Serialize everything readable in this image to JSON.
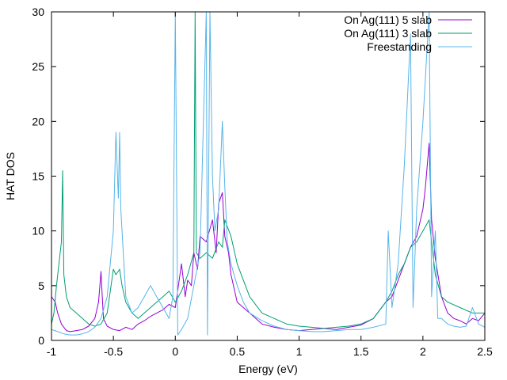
{
  "chart_data": {
    "type": "line",
    "title": "",
    "xlabel": "Energy (eV)",
    "ylabel": "HAT DOS",
    "xlim": [
      -1,
      2.5
    ],
    "ylim": [
      0,
      30
    ],
    "xticks": [
      -1,
      -0.5,
      0,
      0.5,
      1,
      1.5,
      2,
      2.5
    ],
    "xtick_labels": [
      "-1",
      "-0.5",
      "0",
      "0.5",
      "1",
      "1.5",
      "2",
      "2.5"
    ],
    "yticks": [
      0,
      5,
      10,
      15,
      20,
      25,
      30
    ],
    "ytick_labels": [
      "0",
      "5",
      "10",
      "15",
      "20",
      "25",
      "30"
    ],
    "grid": false,
    "legend_position": "top-right",
    "series": [
      {
        "name": "On Ag(111) 5 slab",
        "color": "#9400d3",
        "x": [
          -1.0,
          -0.97,
          -0.95,
          -0.92,
          -0.9,
          -0.88,
          -0.85,
          -0.8,
          -0.75,
          -0.7,
          -0.65,
          -0.62,
          -0.6,
          -0.59,
          -0.58,
          -0.55,
          -0.5,
          -0.45,
          -0.4,
          -0.35,
          -0.3,
          -0.25,
          -0.2,
          -0.15,
          -0.1,
          -0.05,
          0.0,
          0.05,
          0.08,
          0.1,
          0.13,
          0.15,
          0.18,
          0.2,
          0.25,
          0.3,
          0.33,
          0.35,
          0.38,
          0.4,
          0.43,
          0.45,
          0.5,
          0.55,
          0.6,
          0.65,
          0.7,
          0.8,
          0.9,
          1.0,
          1.1,
          1.2,
          1.3,
          1.4,
          1.5,
          1.6,
          1.7,
          1.75,
          1.8,
          1.85,
          1.9,
          1.95,
          2.0,
          2.02,
          2.05,
          2.07,
          2.1,
          2.15,
          2.2,
          2.25,
          2.3,
          2.35,
          2.4,
          2.45,
          2.5
        ],
        "values": [
          4.0,
          3.5,
          2.5,
          1.5,
          1.2,
          0.9,
          0.8,
          0.9,
          1.0,
          1.3,
          2.0,
          3.5,
          6.3,
          4.0,
          2.0,
          1.3,
          1.0,
          0.9,
          1.2,
          1.0,
          1.5,
          1.8,
          2.2,
          2.5,
          2.8,
          3.3,
          3.0,
          7.0,
          4.0,
          5.5,
          5.0,
          8.0,
          6.5,
          9.5,
          9.0,
          11.0,
          8.0,
          12.5,
          13.5,
          9.5,
          8.0,
          6.0,
          3.5,
          3.0,
          2.5,
          2.0,
          1.5,
          1.2,
          1.0,
          0.9,
          1.0,
          1.1,
          1.0,
          1.2,
          1.4,
          2.0,
          3.5,
          4.0,
          5.5,
          7.0,
          8.5,
          9.5,
          12.0,
          14.0,
          18.0,
          11.0,
          7.5,
          4.0,
          2.5,
          2.0,
          1.8,
          1.5,
          2.0,
          1.8,
          2.5
        ]
      },
      {
        "name": "On Ag(111) 3 slab",
        "color": "#009e73",
        "x": [
          -1.0,
          -0.98,
          -0.96,
          -0.94,
          -0.92,
          -0.91,
          -0.9,
          -0.88,
          -0.85,
          -0.8,
          -0.75,
          -0.7,
          -0.65,
          -0.6,
          -0.55,
          -0.5,
          -0.48,
          -0.45,
          -0.43,
          -0.4,
          -0.35,
          -0.3,
          -0.25,
          -0.2,
          -0.15,
          -0.1,
          -0.05,
          0.0,
          0.05,
          0.1,
          0.15,
          0.16,
          0.17,
          0.2,
          0.25,
          0.3,
          0.35,
          0.38,
          0.4,
          0.45,
          0.5,
          0.55,
          0.6,
          0.7,
          0.8,
          0.9,
          1.0,
          1.1,
          1.2,
          1.3,
          1.4,
          1.5,
          1.6,
          1.7,
          1.75,
          1.8,
          1.85,
          1.9,
          1.95,
          2.0,
          2.05,
          2.1,
          2.15,
          2.2,
          2.3,
          2.4,
          2.5
        ],
        "values": [
          1.5,
          2.5,
          5.0,
          7.0,
          9.0,
          15.5,
          6.0,
          4.0,
          3.0,
          2.5,
          2.0,
          1.5,
          1.3,
          1.5,
          2.5,
          6.5,
          6.0,
          6.5,
          5.0,
          3.5,
          2.5,
          2.0,
          2.5,
          3.0,
          3.5,
          4.0,
          4.5,
          3.5,
          4.5,
          6.0,
          8.0,
          30.0,
          8.0,
          7.5,
          8.0,
          7.5,
          9.0,
          8.5,
          11.0,
          9.5,
          7.0,
          5.5,
          4.0,
          2.5,
          2.0,
          1.5,
          1.3,
          1.2,
          1.1,
          1.2,
          1.3,
          1.5,
          2.0,
          3.5,
          4.5,
          6.0,
          7.0,
          8.5,
          9.0,
          10.0,
          11.0,
          6.0,
          4.0,
          3.5,
          3.0,
          2.5,
          2.5
        ]
      },
      {
        "name": "Freestanding",
        "color": "#56b4e9",
        "x": [
          -1.0,
          -0.95,
          -0.9,
          -0.85,
          -0.8,
          -0.75,
          -0.7,
          -0.65,
          -0.6,
          -0.55,
          -0.5,
          -0.48,
          -0.46,
          -0.45,
          -0.44,
          -0.42,
          -0.4,
          -0.35,
          -0.3,
          -0.25,
          -0.2,
          -0.15,
          -0.1,
          -0.05,
          -0.02,
          0.0,
          0.02,
          0.05,
          0.1,
          0.15,
          0.2,
          0.25,
          0.26,
          0.28,
          0.3,
          0.32,
          0.35,
          0.38,
          0.4,
          0.42,
          0.45,
          0.5,
          0.55,
          0.6,
          0.7,
          0.8,
          0.9,
          1.0,
          1.1,
          1.2,
          1.3,
          1.4,
          1.5,
          1.6,
          1.7,
          1.72,
          1.75,
          1.8,
          1.85,
          1.9,
          1.92,
          1.95,
          2.0,
          2.05,
          2.07,
          2.1,
          2.12,
          2.15,
          2.2,
          2.25,
          2.3,
          2.35,
          2.4,
          2.45,
          2.5
        ],
        "values": [
          1.0,
          0.8,
          0.6,
          0.5,
          0.5,
          0.6,
          0.8,
          1.2,
          2.0,
          4.0,
          10.0,
          19.0,
          13.0,
          19.0,
          12.0,
          8.0,
          4.0,
          2.5,
          3.0,
          4.0,
          5.0,
          4.0,
          3.0,
          2.0,
          4.0,
          30.0,
          0.5,
          1.0,
          2.0,
          5.0,
          8.0,
          30.0,
          0.5,
          30.0,
          15.0,
          10.0,
          12.0,
          20.0,
          14.0,
          9.0,
          7.0,
          5.0,
          3.5,
          2.5,
          1.8,
          1.3,
          1.0,
          0.9,
          0.8,
          0.8,
          0.9,
          1.0,
          1.0,
          1.2,
          1.5,
          10.0,
          3.0,
          7.0,
          16.0,
          28.0,
          3.0,
          12.0,
          20.0,
          30.0,
          4.0,
          10.0,
          2.0,
          2.0,
          1.5,
          1.3,
          1.2,
          1.3,
          3.0,
          1.5,
          1.2
        ]
      }
    ]
  }
}
